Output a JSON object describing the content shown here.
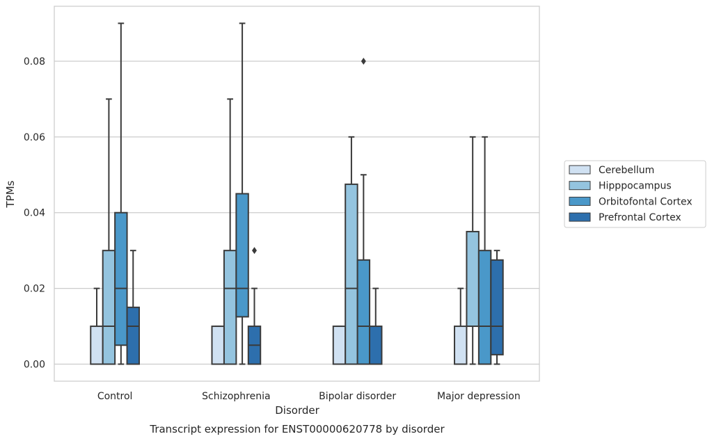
{
  "chart_data": {
    "type": "box",
    "title": "Transcript expression for ENST00000620778 by disorder",
    "xlabel": "Disorder",
    "ylabel": "TPMs",
    "ylim": [
      -0.0045,
      0.0945
    ],
    "yticks": [
      "0.00",
      "0.02",
      "0.04",
      "0.06",
      "0.08"
    ],
    "grid": true,
    "legend_position": "right",
    "categories": [
      "Control",
      "Schizophrenia",
      "Bipolar disorder",
      "Major depression"
    ],
    "series": [
      {
        "name": "Cerebellum",
        "color": "#d0e1f2",
        "boxes": [
          {
            "whislo": 0.0,
            "q1": 0.0,
            "med": 0.0,
            "q3": 0.01,
            "whishi": 0.02,
            "fliers": []
          },
          {
            "whislo": 0.0,
            "q1": 0.0,
            "med": 0.0,
            "q3": 0.01,
            "whishi": 0.01,
            "fliers": []
          },
          {
            "whislo": 0.0,
            "q1": 0.0,
            "med": 0.0,
            "q3": 0.01,
            "whishi": 0.01,
            "fliers": []
          },
          {
            "whislo": 0.0,
            "q1": 0.0,
            "med": 0.0,
            "q3": 0.01,
            "whishi": 0.02,
            "fliers": []
          }
        ]
      },
      {
        "name": "Hipppocampus",
        "color": "#94c4df",
        "boxes": [
          {
            "whislo": 0.0,
            "q1": 0.0,
            "med": 0.01,
            "q3": 0.03,
            "whishi": 0.07,
            "fliers": []
          },
          {
            "whislo": 0.0,
            "q1": 0.0,
            "med": 0.02,
            "q3": 0.03,
            "whishi": 0.07,
            "fliers": []
          },
          {
            "whislo": 0.0,
            "q1": 0.0,
            "med": 0.02,
            "q3": 0.0475,
            "whishi": 0.06,
            "fliers": []
          },
          {
            "whislo": 0.0,
            "q1": 0.01,
            "med": 0.01,
            "q3": 0.035,
            "whishi": 0.06,
            "fliers": []
          }
        ]
      },
      {
        "name": "Orbitofontal Cortex",
        "color": "#4a98c9",
        "boxes": [
          {
            "whislo": 0.0,
            "q1": 0.005,
            "med": 0.02,
            "q3": 0.04,
            "whishi": 0.09,
            "fliers": []
          },
          {
            "whislo": 0.0,
            "q1": 0.0125,
            "med": 0.02,
            "q3": 0.045,
            "whishi": 0.09,
            "fliers": []
          },
          {
            "whislo": 0.0,
            "q1": 0.0,
            "med": 0.01,
            "q3": 0.0275,
            "whishi": 0.05,
            "fliers": [
              0.08
            ]
          },
          {
            "whislo": 0.0,
            "q1": 0.0,
            "med": 0.01,
            "q3": 0.03,
            "whishi": 0.06,
            "fliers": []
          }
        ]
      },
      {
        "name": "Prefrontal Cortex",
        "color": "#2d6fad",
        "boxes": [
          {
            "whislo": 0.0,
            "q1": 0.0,
            "med": 0.01,
            "q3": 0.015,
            "whishi": 0.03,
            "fliers": []
          },
          {
            "whislo": 0.0,
            "q1": 0.0,
            "med": 0.005,
            "q3": 0.01,
            "whishi": 0.02,
            "fliers": [
              0.03
            ]
          },
          {
            "whislo": 0.0,
            "q1": 0.0,
            "med": 0.0,
            "q3": 0.01,
            "whishi": 0.02,
            "fliers": []
          },
          {
            "whislo": 0.0,
            "q1": 0.0025,
            "med": 0.01,
            "q3": 0.0275,
            "whishi": 0.03,
            "fliers": []
          }
        ]
      }
    ]
  }
}
